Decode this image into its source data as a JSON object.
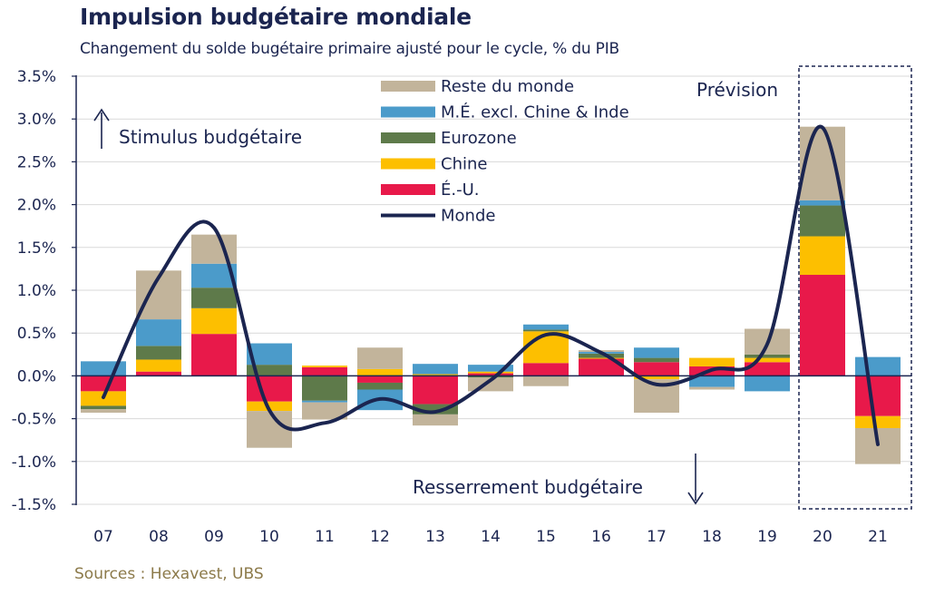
{
  "title": "Impulsion budgétaire mondiale",
  "subtitle": "Changement du solde bugétaire primaire ajusté pour le cycle, % du PIB",
  "source": "Sources : Hexavest, UBS",
  "chart_data": {
    "type": "bar",
    "stacked": true,
    "categories": [
      "07",
      "08",
      "09",
      "10",
      "11",
      "12",
      "13",
      "14",
      "15",
      "16",
      "17",
      "18",
      "19",
      "20",
      "21"
    ],
    "ylim": [
      -1.5,
      3.5
    ],
    "yticks": [
      3.5,
      3.0,
      2.5,
      2.0,
      1.5,
      1.0,
      0.5,
      0.0,
      -0.5,
      -1.0,
      -1.5
    ],
    "ytick_labels": [
      "3.5%",
      "3.0%",
      "2.5%",
      "2.0%",
      "1.5%",
      "1.0%",
      "0.5%",
      "0.0%",
      "-0.5%",
      "-1.0%",
      "-1.5%"
    ],
    "grid": true,
    "legend_position": "top-center",
    "series": [
      {
        "name": "É.-U.",
        "color": "#e8194a",
        "values": [
          -0.18,
          0.05,
          0.49,
          -0.3,
          0.1,
          -0.08,
          -0.33,
          0.03,
          0.15,
          0.2,
          0.16,
          0.11,
          0.16,
          1.18,
          -0.47
        ]
      },
      {
        "name": "Chine",
        "color": "#fdbf00",
        "values": [
          -0.17,
          0.14,
          0.3,
          -0.11,
          0.02,
          0.08,
          0.02,
          0.02,
          0.37,
          0.01,
          -0.04,
          0.1,
          0.05,
          0.45,
          -0.14
        ]
      },
      {
        "name": "Eurozone",
        "color": "#5e7a4a",
        "values": [
          -0.04,
          0.16,
          0.24,
          0.13,
          -0.29,
          -0.08,
          -0.12,
          -0.02,
          0.02,
          0.05,
          0.05,
          0.0,
          0.04,
          0.36,
          0.0
        ]
      },
      {
        "name": "M.É. excl. Chine & Inde",
        "color": "#4b9bca",
        "values": [
          0.17,
          0.31,
          0.28,
          0.25,
          -0.02,
          -0.24,
          0.12,
          0.08,
          0.06,
          0.02,
          0.12,
          -0.13,
          -0.18,
          0.06,
          0.22
        ]
      },
      {
        "name": "Reste du monde",
        "color": "#c2b49b",
        "values": [
          -0.04,
          0.57,
          0.34,
          -0.43,
          -0.2,
          0.25,
          -0.13,
          -0.16,
          -0.12,
          0.02,
          -0.39,
          -0.03,
          0.3,
          0.86,
          -0.42
        ]
      }
    ],
    "line": {
      "name": "Monde",
      "color": "#1b2550",
      "values": [
        -0.25,
        1.15,
        1.73,
        -0.4,
        -0.55,
        -0.27,
        -0.42,
        -0.05,
        0.48,
        0.27,
        -0.1,
        0.07,
        0.37,
        2.9,
        -0.8
      ]
    },
    "legend_order": [
      "Reste du monde",
      "M.É. excl. Chine & Inde",
      "Eurozone",
      "Chine",
      "É.-U.",
      "Monde"
    ],
    "annotations": {
      "forecast": "Prévision",
      "stimulus": "Stimulus budgétaire",
      "tightening": "Resserrement budgétaire"
    }
  }
}
